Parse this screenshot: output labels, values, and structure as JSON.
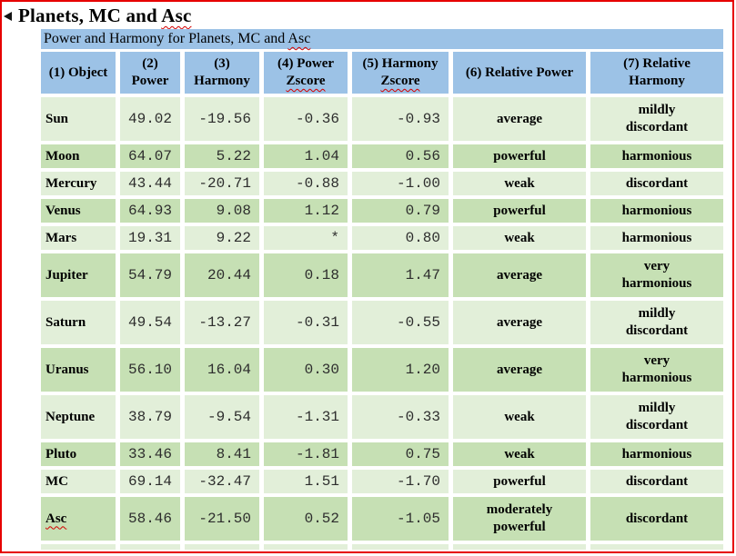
{
  "page": {
    "title": {
      "prefix": "Planets, MC and ",
      "misspelled": "Asc"
    },
    "caption": {
      "prefix": "Power and Harmony for Planets, MC and ",
      "misspelled": "Asc"
    },
    "collapse_marker": "left-triangle"
  },
  "colors": {
    "header_blue": "#9CC2E6",
    "row_light": "#E2EFD9",
    "row_dark": "#C6E0B4",
    "frame_red": "#E60000",
    "squiggle_red": "#D40000"
  },
  "table": {
    "headers": [
      {
        "lines": [
          "(1) Object"
        ]
      },
      {
        "lines": [
          "(2)",
          "Power"
        ]
      },
      {
        "lines": [
          "(3)",
          "Harmony"
        ]
      },
      {
        "lines": [
          "(4) Power",
          "Zscore"
        ],
        "wavy_line": 1
      },
      {
        "lines": [
          "(5) Harmony",
          "Zscore"
        ],
        "wavy_line": 1
      },
      {
        "lines": [
          "(6) Relative Power"
        ]
      },
      {
        "lines": [
          "(7) Relative",
          "Harmony"
        ]
      }
    ],
    "rows": [
      {
        "object": "Sun",
        "power": "49.02",
        "harmony": "-19.56",
        "power_zscore": "-0.36",
        "harmony_zscore": "-0.93",
        "relative_power": "average",
        "relative_harmony": "mildly\ndiscordant"
      },
      {
        "object": "Moon",
        "power": "64.07",
        "harmony": "5.22",
        "power_zscore": "1.04",
        "harmony_zscore": "0.56",
        "relative_power": "powerful",
        "relative_harmony": "harmonious"
      },
      {
        "object": "Mercury",
        "power": "43.44",
        "harmony": "-20.71",
        "power_zscore": "-0.88",
        "harmony_zscore": "-1.00",
        "relative_power": "weak",
        "relative_harmony": "discordant"
      },
      {
        "object": "Venus",
        "power": "64.93",
        "harmony": "9.08",
        "power_zscore": "1.12",
        "harmony_zscore": "0.79",
        "relative_power": "powerful",
        "relative_harmony": "harmonious"
      },
      {
        "object": "Mars",
        "power": "19.31",
        "harmony": "9.22",
        "power_zscore": "*",
        "harmony_zscore": "0.80",
        "relative_power": "weak",
        "relative_harmony": "harmonious"
      },
      {
        "object": "Jupiter",
        "power": "54.79",
        "harmony": "20.44",
        "power_zscore": "0.18",
        "harmony_zscore": "1.47",
        "relative_power": "average",
        "relative_harmony": "very\nharmonious"
      },
      {
        "object": "Saturn",
        "power": "49.54",
        "harmony": "-13.27",
        "power_zscore": "-0.31",
        "harmony_zscore": "-0.55",
        "relative_power": "average",
        "relative_harmony": "mildly\ndiscordant"
      },
      {
        "object": "Uranus",
        "power": "56.10",
        "harmony": "16.04",
        "power_zscore": "0.30",
        "harmony_zscore": "1.20",
        "relative_power": "average",
        "relative_harmony": "very\nharmonious"
      },
      {
        "object": "Neptune",
        "power": "38.79",
        "harmony": "-9.54",
        "power_zscore": "-1.31",
        "harmony_zscore": "-0.33",
        "relative_power": "weak",
        "relative_harmony": "mildly\ndiscordant"
      },
      {
        "object": "Pluto",
        "power": "33.46",
        "harmony": "8.41",
        "power_zscore": "-1.81",
        "harmony_zscore": "0.75",
        "relative_power": "weak",
        "relative_harmony": "harmonious"
      },
      {
        "object": "MC",
        "power": "69.14",
        "harmony": "-32.47",
        "power_zscore": "1.51",
        "harmony_zscore": "-1.70",
        "relative_power": "powerful",
        "relative_harmony": "discordant"
      },
      {
        "object": "Asc",
        "power": "58.46",
        "harmony": "-21.50",
        "power_zscore": "0.52",
        "harmony_zscore": "-1.05",
        "relative_power": "moderately\npowerful",
        "relative_harmony": "discordant",
        "misspelled": true
      }
    ],
    "partial_row_visible": true
  }
}
